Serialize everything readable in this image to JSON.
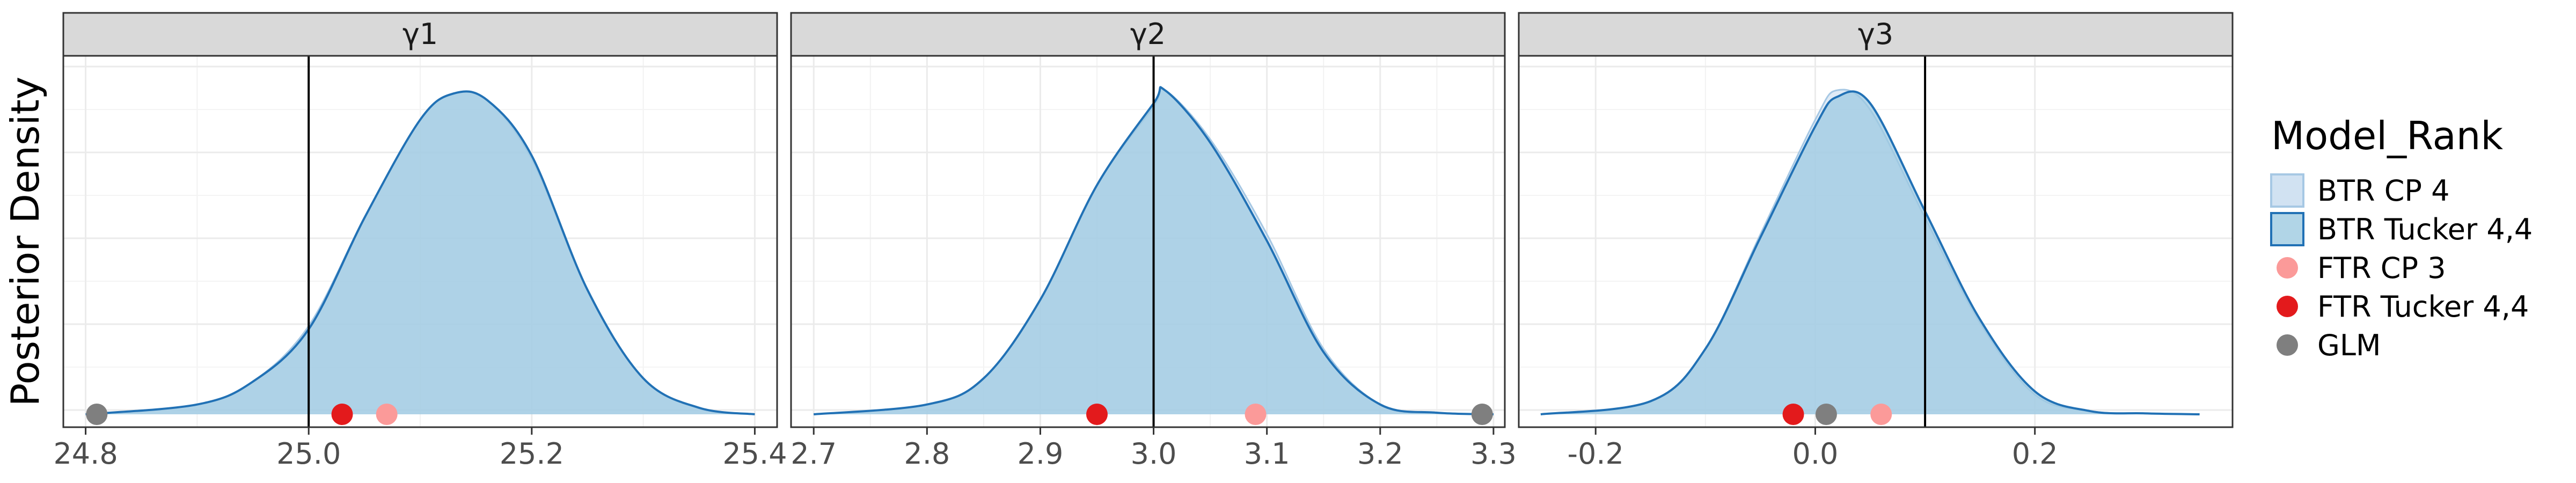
{
  "ylabel": "Posterior Density",
  "legend": {
    "title": "Model_Rank",
    "entries": [
      {
        "label": "BTR CP 4",
        "kind": "area",
        "fill": "#c6dbef",
        "stroke": "#a6c8e4"
      },
      {
        "label": "BTR Tucker 4,4",
        "kind": "area",
        "fill": "#9ecae1",
        "stroke": "#2171b5"
      },
      {
        "label": "FTR CP 3",
        "kind": "point",
        "color": "#fb9a99"
      },
      {
        "label": "FTR Tucker 4,4",
        "kind": "point",
        "color": "#e31a1c"
      },
      {
        "label": "GLM",
        "kind": "point",
        "color": "#7f7f7f"
      }
    ]
  },
  "chart_data": [
    {
      "type": "area",
      "facet": "γ1",
      "xlim": [
        24.78,
        25.42
      ],
      "ticks": [
        24.8,
        25.0,
        25.2,
        25.4
      ],
      "tick_labels": [
        "24.8",
        "25.0",
        "25.2",
        "25.4"
      ],
      "true_value": 25.0,
      "series": [
        {
          "name": "BTR CP 4",
          "x": [
            24.8,
            24.9,
            24.95,
            25.0,
            25.05,
            25.1,
            25.13,
            25.16,
            25.2,
            25.25,
            25.3,
            25.35,
            25.4
          ],
          "y": [
            0.0,
            0.03,
            0.1,
            0.27,
            0.6,
            0.9,
            0.98,
            0.96,
            0.78,
            0.38,
            0.11,
            0.02,
            0.0
          ]
        },
        {
          "name": "BTR Tucker 4,4",
          "x": [
            24.8,
            24.9,
            24.95,
            25.0,
            25.05,
            25.1,
            25.13,
            25.16,
            25.2,
            25.25,
            25.3,
            25.35,
            25.4
          ],
          "y": [
            0.0,
            0.03,
            0.1,
            0.26,
            0.6,
            0.9,
            0.98,
            0.96,
            0.79,
            0.38,
            0.11,
            0.02,
            0.0
          ]
        }
      ],
      "points": [
        {
          "name": "FTR CP 3",
          "x": 25.07
        },
        {
          "name": "FTR Tucker 4,4",
          "x": 25.03
        },
        {
          "name": "GLM",
          "x": 24.81
        }
      ]
    },
    {
      "type": "area",
      "facet": "γ2",
      "xlim": [
        2.68,
        3.31
      ],
      "ticks": [
        2.7,
        2.8,
        2.9,
        3.0,
        3.1,
        3.2,
        3.3
      ],
      "tick_labels": [
        "2.7",
        "2.8",
        "2.9",
        "3.0",
        "3.1",
        "3.2",
        "3.3"
      ],
      "true_value": 3.0,
      "series": [
        {
          "name": "BTR CP 4",
          "x": [
            2.7,
            2.8,
            2.85,
            2.9,
            2.95,
            3.0,
            3.01,
            3.05,
            3.1,
            3.15,
            3.2,
            3.25,
            3.3
          ],
          "y": [
            0.0,
            0.03,
            0.11,
            0.35,
            0.7,
            0.94,
            0.99,
            0.84,
            0.55,
            0.2,
            0.03,
            0.005,
            0.0
          ]
        },
        {
          "name": "BTR Tucker 4,4",
          "x": [
            2.7,
            2.8,
            2.85,
            2.9,
            2.95,
            3.0,
            3.01,
            3.05,
            3.1,
            3.15,
            3.2,
            3.25,
            3.3
          ],
          "y": [
            0.0,
            0.03,
            0.11,
            0.35,
            0.7,
            0.95,
            0.99,
            0.83,
            0.53,
            0.19,
            0.03,
            0.005,
            0.0
          ]
        }
      ],
      "points": [
        {
          "name": "FTR CP 3",
          "x": 3.09
        },
        {
          "name": "FTR Tucker 4,4",
          "x": 2.95
        },
        {
          "name": "GLM",
          "x": 3.29
        }
      ]
    },
    {
      "type": "area",
      "facet": "γ3",
      "xlim": [
        -0.27,
        0.38
      ],
      "ticks": [
        -0.2,
        0.0,
        0.2
      ],
      "tick_labels": [
        "-0.2",
        "0.0",
        "0.2"
      ],
      "true_value": 0.1,
      "series": [
        {
          "name": "BTR CP 4",
          "x": [
            -0.25,
            -0.15,
            -0.1,
            -0.05,
            0.0,
            0.02,
            0.05,
            0.1,
            0.15,
            0.2,
            0.25,
            0.3,
            0.35
          ],
          "y": [
            0.0,
            0.04,
            0.2,
            0.55,
            0.9,
            0.99,
            0.93,
            0.6,
            0.28,
            0.06,
            0.01,
            0.003,
            0.0
          ]
        },
        {
          "name": "BTR Tucker 4,4",
          "x": [
            -0.25,
            -0.15,
            -0.1,
            -0.05,
            0.0,
            0.02,
            0.05,
            0.1,
            0.15,
            0.2,
            0.25,
            0.3,
            0.35
          ],
          "y": [
            0.0,
            0.04,
            0.2,
            0.54,
            0.88,
            0.97,
            0.95,
            0.62,
            0.29,
            0.07,
            0.01,
            0.003,
            0.0
          ]
        }
      ],
      "points": [
        {
          "name": "FTR CP 3",
          "x": 0.06
        },
        {
          "name": "FTR Tucker 4,4",
          "x": -0.02
        },
        {
          "name": "GLM",
          "x": 0.01
        }
      ]
    }
  ]
}
